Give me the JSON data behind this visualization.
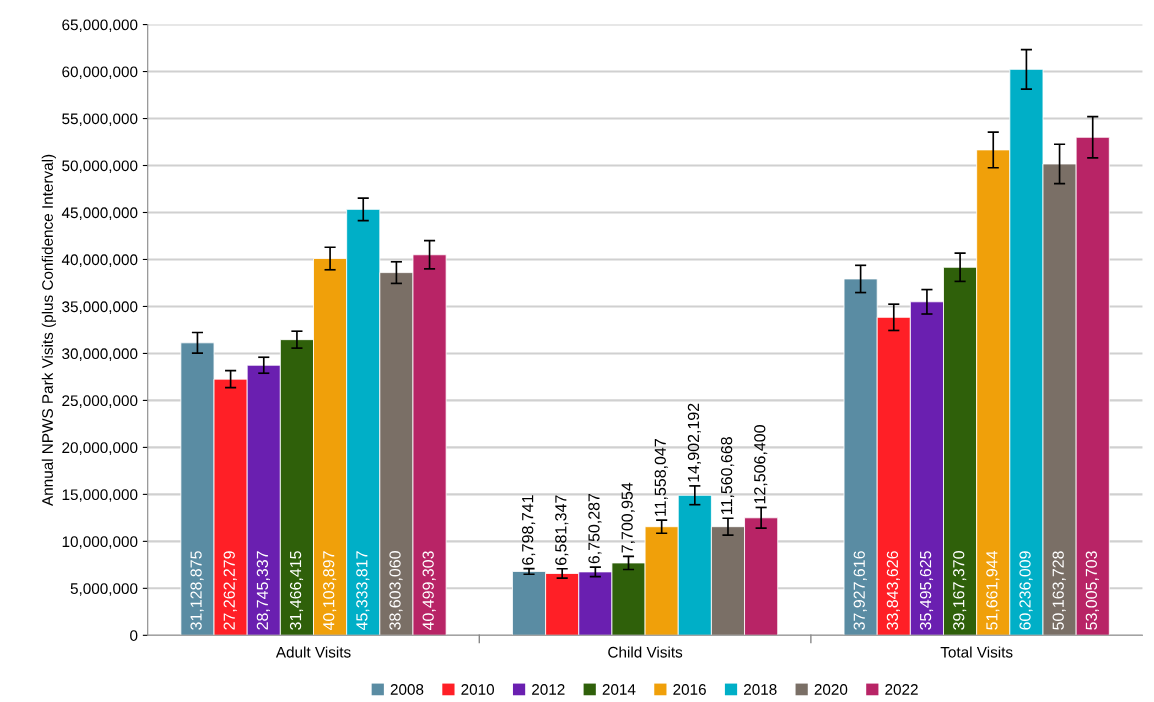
{
  "chart_data": {
    "type": "bar",
    "ylabel": "Annual NPWS Park Visits (plus Confidence Interval)",
    "categories": [
      "Adult Visits",
      "Child Visits",
      "Total Visits"
    ],
    "series": [
      {
        "name": "2008",
        "color": "#5a8ca3",
        "values": [
          31128875,
          6798741,
          37927616
        ],
        "value_labels": [
          "31,128,875",
          "6,798,741",
          "37,927,616"
        ],
        "errors": [
          1100000,
          300000,
          1450000
        ]
      },
      {
        "name": "2010",
        "color": "#ff1f26",
        "values": [
          27262279,
          6581347,
          33843626
        ],
        "value_labels": [
          "27,262,279",
          "6,581,347",
          "33,843,626"
        ],
        "errors": [
          900000,
          500000,
          1400000
        ]
      },
      {
        "name": "2012",
        "color": "#6a1fb0",
        "values": [
          28745337,
          6750287,
          35495625
        ],
        "value_labels": [
          "28,745,337",
          "6,750,287",
          "35,495,625"
        ],
        "errors": [
          850000,
          500000,
          1300000
        ]
      },
      {
        "name": "2014",
        "color": "#2f600a",
        "values": [
          31466415,
          7700954,
          39167370
        ],
        "value_labels": [
          "31,466,415",
          "7,700,954",
          "39,167,370"
        ],
        "errors": [
          900000,
          700000,
          1500000
        ]
      },
      {
        "name": "2016",
        "color": "#f0a00a",
        "values": [
          40103897,
          11558047,
          51661944
        ],
        "value_labels": [
          "40,103,897",
          "11,558,047",
          "51,661,944"
        ],
        "errors": [
          1200000,
          700000,
          1900000
        ]
      },
      {
        "name": "2018",
        "color": "#00afc7",
        "values": [
          45333817,
          14902192,
          60236009
        ],
        "value_labels": [
          "45,333,817",
          "14,902,192",
          "60,236,009"
        ],
        "errors": [
          1200000,
          1000000,
          2100000
        ]
      },
      {
        "name": "2020",
        "color": "#7a6f66",
        "values": [
          38603060,
          11560668,
          50163728
        ],
        "value_labels": [
          "38,603,060",
          "11,560,668",
          "50,163,728"
        ],
        "errors": [
          1150000,
          900000,
          2100000
        ]
      },
      {
        "name": "2022",
        "color": "#b82466",
        "values": [
          40499303,
          12506400,
          53005703
        ],
        "value_labels": [
          "40,499,303",
          "12,506,400",
          "53,005,703"
        ],
        "errors": [
          1500000,
          1100000,
          2200000
        ]
      }
    ],
    "ylim": [
      0,
      65000000
    ],
    "yticks": [
      {
        "value": 0,
        "label": "0"
      },
      {
        "value": 5000000,
        "label": "5,000,000"
      },
      {
        "value": 10000000,
        "label": "10,000,000"
      },
      {
        "value": 15000000,
        "label": "15,000,000"
      },
      {
        "value": 20000000,
        "label": "20,000,000"
      },
      {
        "value": 25000000,
        "label": "25,000,000"
      },
      {
        "value": 30000000,
        "label": "30,000,000"
      },
      {
        "value": 35000000,
        "label": "35,000,000"
      },
      {
        "value": 40000000,
        "label": "40,000,000"
      },
      {
        "value": 45000000,
        "label": "45,000,000"
      },
      {
        "value": 50000000,
        "label": "50,000,000"
      },
      {
        "value": 55000000,
        "label": "55,000,000"
      },
      {
        "value": 60000000,
        "label": "60,000,000"
      },
      {
        "value": 65000000,
        "label": "65,000,000"
      }
    ],
    "grid": "y",
    "legend": "bottom"
  }
}
